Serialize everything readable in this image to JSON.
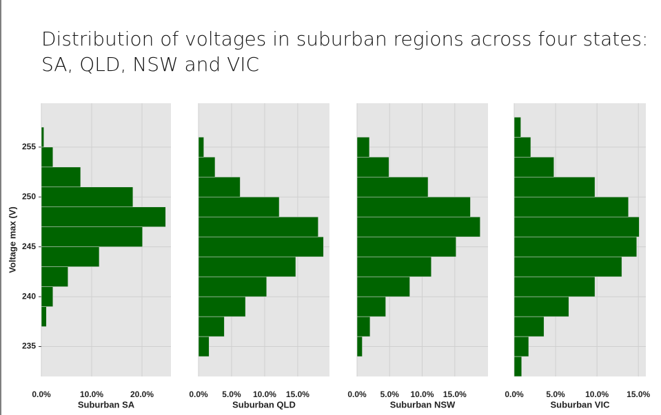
{
  "title": [
    "Distribution of voltages in suburban regions across four states:",
    "SA, QLD, NSW and VIC"
  ],
  "chart_data": [
    {
      "type": "histogram",
      "orientation": "horizontal",
      "xlabel": "Suburban  SA",
      "ylabel": "Voltage max (V)",
      "color": "#006400",
      "grid": true,
      "bins": [
        237,
        239,
        241,
        243,
        245,
        247,
        249,
        251,
        253,
        255,
        257
      ],
      "values": [
        1.0,
        2.3,
        5.3,
        11.5,
        20.1,
        24.7,
        18.2,
        7.8,
        2.3,
        0.5
      ],
      "xlim": [
        0,
        25.75
      ],
      "xticks": [
        {
          "value": 0,
          "label": "0.0%"
        },
        {
          "value": 10,
          "label": "10.0%"
        },
        {
          "value": 20,
          "label": "20.0%"
        }
      ],
      "ylim": [
        232,
        259.4
      ],
      "yticks": [
        235,
        240,
        245,
        250,
        255
      ]
    },
    {
      "type": "histogram",
      "orientation": "horizontal",
      "xlabel": "Suburban  QLD",
      "color": "#006400",
      "grid": true,
      "bins": [
        234,
        236,
        238,
        240,
        242,
        244,
        246,
        248,
        250,
        252,
        254,
        256
      ],
      "values": [
        1.6,
        3.9,
        7.1,
        10.3,
        14.7,
        18.9,
        18.1,
        12.2,
        6.3,
        2.5,
        0.8
      ],
      "xlim": [
        0,
        19.8
      ],
      "xticks": [
        {
          "value": 0,
          "label": "0.0%"
        },
        {
          "value": 5,
          "label": "5.0%"
        },
        {
          "value": 10,
          "label": "10.0%"
        },
        {
          "value": 15,
          "label": "15.0%"
        }
      ],
      "ylim": [
        232,
        259.4
      ],
      "yticks": [
        235,
        240,
        245,
        250,
        255
      ]
    },
    {
      "type": "histogram",
      "orientation": "horizontal",
      "xlabel": "Suburban  NSW",
      "color": "#006400",
      "grid": true,
      "bins": [
        234,
        236,
        238,
        240,
        242,
        244,
        246,
        248,
        250,
        252,
        254,
        256
      ],
      "values": [
        0.8,
        2.0,
        4.4,
        8.1,
        11.4,
        15.2,
        18.9,
        17.4,
        10.9,
        4.9,
        1.9
      ],
      "xlim": [
        0,
        20.1
      ],
      "xticks": [
        {
          "value": 0,
          "label": "0.0%"
        },
        {
          "value": 5,
          "label": "5.0%"
        },
        {
          "value": 10,
          "label": "10.0%"
        },
        {
          "value": 15,
          "label": "15.0%"
        }
      ],
      "ylim": [
        232,
        259.4
      ],
      "yticks": [
        235,
        240,
        245,
        250,
        255
      ]
    },
    {
      "type": "histogram",
      "orientation": "horizontal",
      "xlabel": "Suburban  VIC",
      "color": "#006400",
      "grid": true,
      "bins": [
        232,
        234,
        236,
        238,
        240,
        242,
        244,
        246,
        248,
        250,
        252,
        254,
        256,
        258
      ],
      "values": [
        0.9,
        1.75,
        3.6,
        6.6,
        9.75,
        13.0,
        14.8,
        15.1,
        13.8,
        9.75,
        4.8,
        2.0,
        0.8
      ],
      "xlim": [
        0,
        15.9
      ],
      "xticks": [
        {
          "value": 0,
          "label": "0.0%"
        },
        {
          "value": 5,
          "label": "5.0%"
        },
        {
          "value": 10,
          "label": "10.0%"
        },
        {
          "value": 15,
          "label": "15.0%"
        }
      ],
      "ylim": [
        232,
        259.4
      ],
      "yticks": [
        235,
        240,
        245,
        250,
        255
      ]
    }
  ]
}
